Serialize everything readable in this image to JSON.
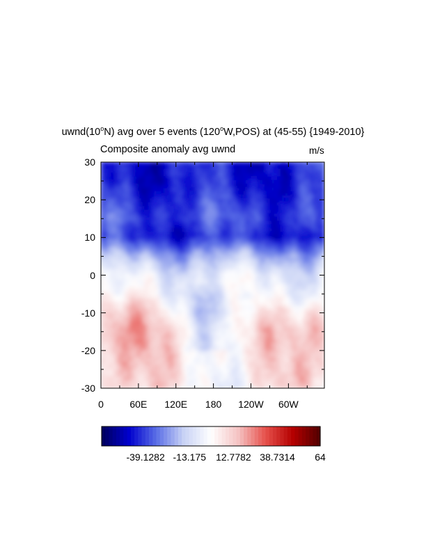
{
  "title_text": "uwnd(10°N) avg over 5 events (120°W,POS) at (45-55) {1949-2010}",
  "title_parts": {
    "a": "uwnd(10",
    "deg1": "o",
    "b": "N) avg over 5 events (120",
    "deg2": "o",
    "c": "W,POS) at (45-55) {1949-2010}"
  },
  "left_subtitle": "Composite anomaly avg uwnd",
  "right_subtitle": "m/s",
  "chart_data": {
    "type": "heatmap",
    "title": "uwnd(10°N) avg over 5 events (120°W,POS) at (45-55) {1949-2010}",
    "subtitle_left": "Composite anomaly avg uwnd",
    "units": "m/s",
    "x_ticks": [
      "0",
      "60E",
      "120E",
      "180",
      "120W",
      "60W"
    ],
    "x_tick_values": [
      0,
      60,
      120,
      180,
      240,
      300
    ],
    "xlim": [
      0,
      357.5
    ],
    "y_ticks": [
      "30",
      "20",
      "10",
      "0",
      "-10",
      "-20",
      "-30"
    ],
    "y_tick_values": [
      30,
      20,
      10,
      0,
      -10,
      -20,
      -30
    ],
    "ylim": [
      -30,
      30
    ],
    "colorbar": {
      "labels": [
        "-39.1282",
        "-13.175",
        "12.7782",
        "38.7314",
        "64"
      ],
      "label_values": [
        -39.1282,
        -13.175,
        12.7782,
        38.7314,
        64
      ],
      "min": -65.08,
      "max": 64,
      "colormap": "BlueWhiteOrangeRed",
      "colors": [
        "#00005a",
        "#0000cd",
        "#5a6ee6",
        "#c8d2f5",
        "#ffffff",
        "#f5c3c3",
        "#e6504b",
        "#b40000",
        "#500000"
      ]
    },
    "grid": false,
    "field_description": "Zonal wind anomaly; strong negative (blue) values north of ~5 degrees latitude, weak positive (red) values south of ~-10 degrees, with a white/light transition band near 0 to -5 degrees.",
    "lat_profile": {
      "lat": [
        30,
        25,
        20,
        15,
        10,
        5,
        0,
        -5,
        -10,
        -15,
        -20,
        -25,
        -30
      ],
      "value": [
        -45,
        -46,
        -42,
        -38,
        -44,
        -22,
        -8,
        -4,
        5,
        12,
        10,
        8,
        6
      ]
    }
  }
}
